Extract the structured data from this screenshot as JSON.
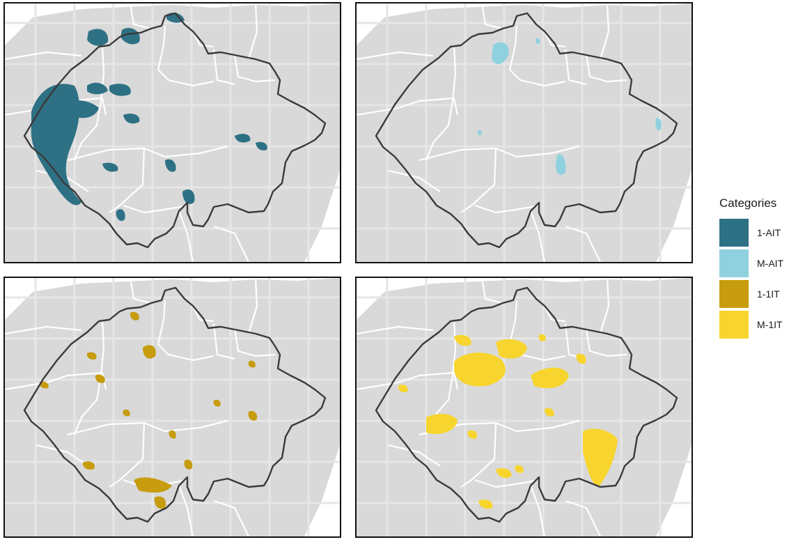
{
  "colors": {
    "land": "#d9d9d9",
    "grid": "#e6e6e6",
    "internal_border": "#ffffff",
    "study_outline": "#3a3a3a"
  },
  "legend": {
    "title": "Categories",
    "items": [
      {
        "label": "1-AIT",
        "color": "#2e7185"
      },
      {
        "label": "M-AIT",
        "color": "#8fd1df"
      },
      {
        "label": "1-1IT",
        "color": "#c79c0e"
      },
      {
        "label": "M-1IT",
        "color": "#f7d52e"
      }
    ]
  },
  "panels": [
    {
      "category": "1-AIT"
    },
    {
      "category": "M-AIT"
    },
    {
      "category": "1-1IT"
    },
    {
      "category": "M-1IT"
    }
  ]
}
